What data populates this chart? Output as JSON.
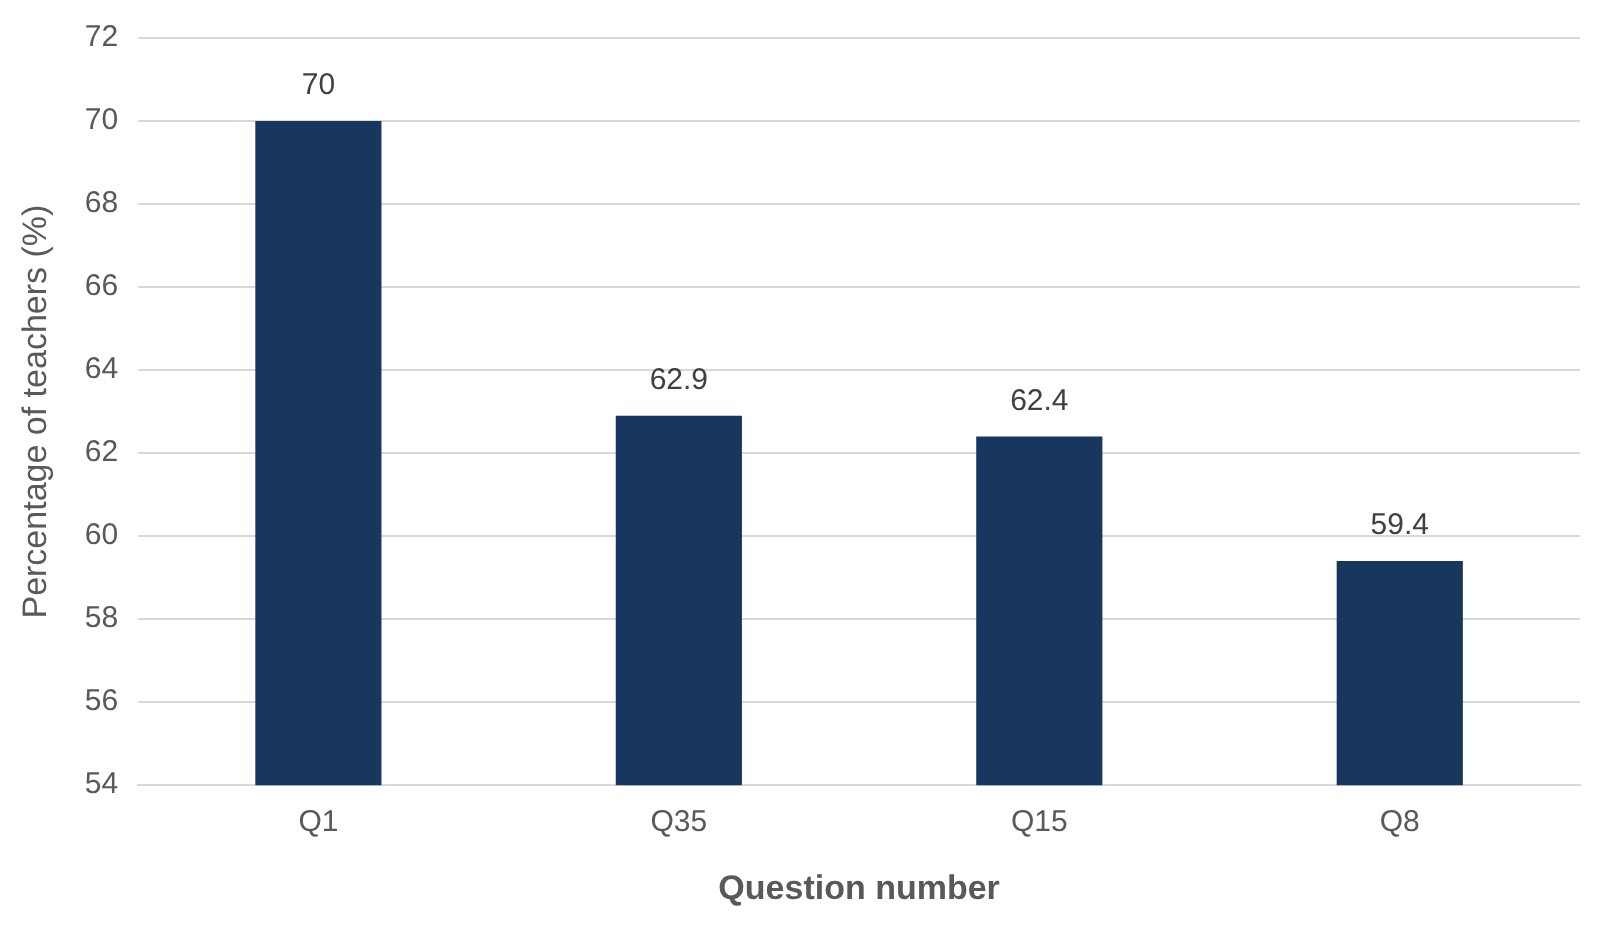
{
  "chart_data": {
    "type": "bar",
    "xlabel": "Question number",
    "ylabel": "Percentage of teachers (%)",
    "categories": [
      "Q1",
      "Q35",
      "Q15",
      "Q8"
    ],
    "values": [
      70,
      62.9,
      62.4,
      59.4
    ],
    "color": "#17375e",
    "ylim": [
      54,
      72
    ],
    "yticks": [
      54,
      56,
      58,
      60,
      62,
      64,
      66,
      68,
      70,
      72
    ],
    "grid": "y",
    "data_labels": true
  }
}
